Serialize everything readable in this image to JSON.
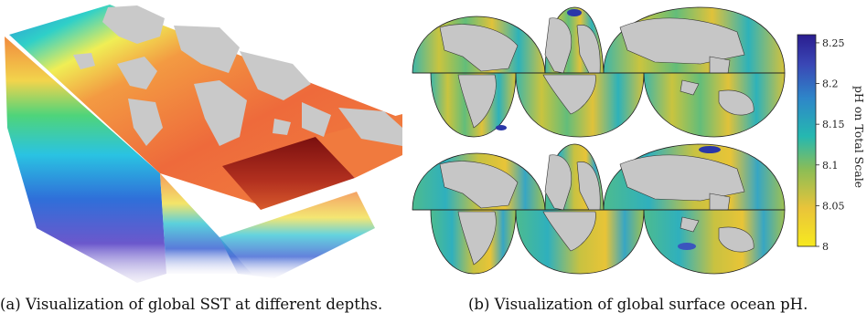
{
  "figure": {
    "caption_a": "(a)  Visualization of global SST at different depths.",
    "caption_b": "(b)  Visualization of global surface ocean pH."
  },
  "colorbar": {
    "label": "pH on Total Scale",
    "ticks": [
      "8.25",
      "8.2",
      "8.15",
      "8.1",
      "8.05",
      "8"
    ],
    "range": [
      8.0,
      8.26
    ],
    "colors": [
      "#f7e91f",
      "#e9c43a",
      "#8dbd55",
      "#25b8b0",
      "#2e86c9",
      "#3a47b5",
      "#2a1d8f"
    ]
  },
  "sst_colors": [
    "#7d0f0f",
    "#d64a2a",
    "#f2883f",
    "#f6c24b",
    "#f0ef4f",
    "#4ad07a",
    "#2ec5e0",
    "#2e72db",
    "#5543c8",
    "#a99ad8"
  ],
  "land_color": "#c6c6c6"
}
